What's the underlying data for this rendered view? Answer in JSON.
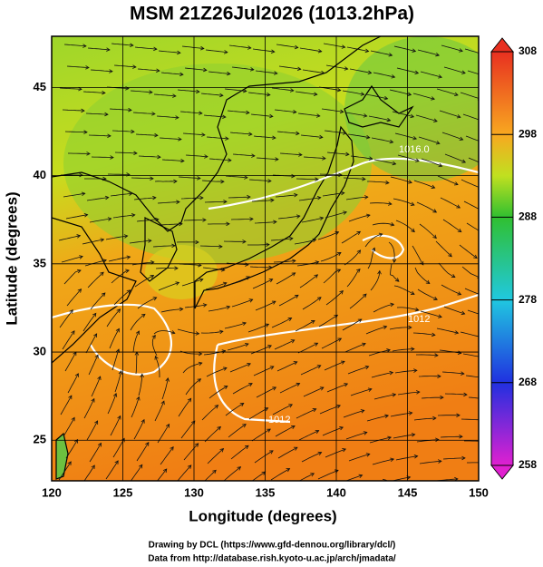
{
  "title": "MSM 21Z26Jul2026 (1013.2hPa)",
  "x_axis": {
    "label": "Longitude (degrees)",
    "range": [
      120,
      150
    ],
    "ticks": [
      120,
      125,
      130,
      135,
      140,
      145,
      150
    ]
  },
  "y_axis": {
    "label": "Latitude  (degrees)",
    "range": [
      22.7,
      47.9
    ],
    "ticks": [
      25,
      30,
      35,
      40,
      45
    ]
  },
  "colorbar": {
    "range": [
      258,
      308
    ],
    "ticks": [
      258,
      268,
      278,
      288,
      298,
      308
    ]
  },
  "contour_labels": [
    "1016.0",
    "1012",
    "1012"
  ],
  "credits": [
    "Drawing by DCL (https://www.gfd-dennou.org/library/dcl/)",
    "Data from http://database.rish.kyoto-u.ac.jp/arch/jmadata/"
  ]
}
